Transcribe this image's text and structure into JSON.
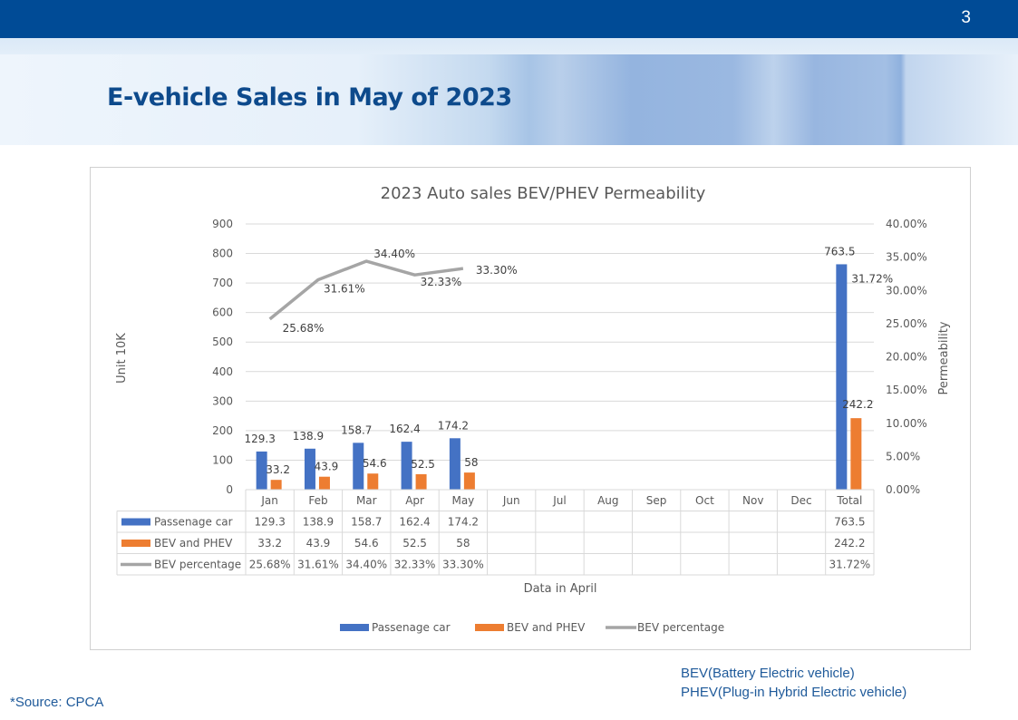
{
  "slide": {
    "page_number": "3",
    "title": "E-vehicle Sales in May of 2023",
    "source_note": "*Source:  CPCA",
    "definitions": [
      "BEV(Battery Electric vehicle)",
      "PHEV(Plug-in Hybrid Electric vehicle)"
    ]
  },
  "colors": {
    "header_blue": "#004b96",
    "title_blue": "#0d4a8c",
    "passenger": "#4472c4",
    "bev": "#ed7d31",
    "percentage": "#a5a5a5"
  },
  "chart_data": {
    "type": "bar",
    "title": "2023 Auto sales BEV/PHEV Permeability",
    "xlabel": "Data in April",
    "ylabel": "Unit 10K",
    "y2label": "Permeability",
    "ylim": [
      0,
      900
    ],
    "yticks": [
      "0",
      "100",
      "200",
      "300",
      "400",
      "500",
      "600",
      "700",
      "800",
      "900"
    ],
    "y2lim": [
      0,
      40
    ],
    "y2ticks": [
      "0.00%",
      "5.00%",
      "10.00%",
      "15.00%",
      "20.00%",
      "25.00%",
      "30.00%",
      "35.00%",
      "40.00%"
    ],
    "grid": true,
    "legend": "bottom",
    "categories": [
      "Jan",
      "Feb",
      "Mar",
      "Apr",
      "May",
      "Jun",
      "Jul",
      "Aug",
      "Sep",
      "Oct",
      "Nov",
      "Dec",
      "Total"
    ],
    "series": [
      {
        "name": "Passenage car",
        "kind": "bar",
        "axis": "left",
        "values": [
          129.3,
          138.9,
          158.7,
          162.4,
          174.2,
          null,
          null,
          null,
          null,
          null,
          null,
          null,
          763.5
        ],
        "labels": [
          "129.3",
          "138.9",
          "158.7",
          "162.4",
          "174.2",
          "",
          "",
          "",
          "",
          "",
          "",
          "",
          "763.5"
        ]
      },
      {
        "name": "BEV and PHEV",
        "kind": "bar",
        "axis": "left",
        "values": [
          33.2,
          43.9,
          54.6,
          52.5,
          58,
          null,
          null,
          null,
          null,
          null,
          null,
          null,
          242.2
        ],
        "labels": [
          "33.2",
          "43.9",
          "54.6",
          "52.5",
          "58",
          "",
          "",
          "",
          "",
          "",
          "",
          "",
          "242.2"
        ]
      },
      {
        "name": "BEV percentage",
        "kind": "line",
        "axis": "right",
        "values": [
          25.68,
          31.61,
          34.4,
          32.33,
          33.3,
          null,
          null,
          null,
          null,
          null,
          null,
          null,
          31.72
        ],
        "labels": [
          "25.68%",
          "31.61%",
          "34.40%",
          "32.33%",
          "33.30%",
          "",
          "",
          "",
          "",
          "",
          "",
          "",
          "31.72%"
        ]
      }
    ]
  }
}
